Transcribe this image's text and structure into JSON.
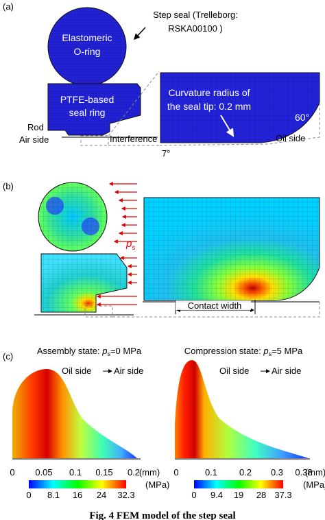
{
  "panel_a": {
    "label": "(a)",
    "callout": [
      "Step seal (Trelleborg:",
      "RSKA00100 )"
    ],
    "oring": [
      "Elastomeric",
      "O-ring"
    ],
    "ring": [
      "PTFE-based",
      "seal ring"
    ],
    "rod": "Rod",
    "air_side": "Air side",
    "interference": "Interference",
    "curvature": [
      "Curvature radius of",
      "the seal tip: 0.2 mm"
    ],
    "angle_60": "60°",
    "oil_side": "Oil side",
    "angle_7": "7°"
  },
  "panel_b": {
    "label": "(b)",
    "pressure_symbol": "p",
    "pressure_sub": "s",
    "contact_width": "Contact width"
  },
  "panel_c": {
    "label": "(c)",
    "left": {
      "title_prefix": "Assembly state: ",
      "symbol": "p",
      "sub": "s",
      "title_suffix": "=0 MPa",
      "direction_from": "Oil side",
      "direction_to": "Air side",
      "x_ticks": [
        "0",
        "0.05",
        "0.1",
        "0.15",
        "0.2"
      ],
      "x_unit": "(mm)",
      "color_ticks": [
        "0",
        "8.1",
        "16",
        "24",
        "32.3"
      ],
      "color_unit": "(MPa)"
    },
    "right": {
      "title_prefix": "Compression state: ",
      "symbol": "p",
      "sub": "s",
      "title_suffix": "=5 MPa",
      "direction_from": "Oil side",
      "direction_to": "Air side",
      "x_ticks": [
        "0",
        "0.1",
        "0.2",
        "0.3",
        "0.38"
      ],
      "x_unit": "(mm)",
      "color_ticks": [
        "0",
        "9.4",
        "19",
        "28",
        "37.3"
      ],
      "color_unit": "(MPa)"
    }
  },
  "caption": "Fig. 4  FEM model of the step seal"
}
